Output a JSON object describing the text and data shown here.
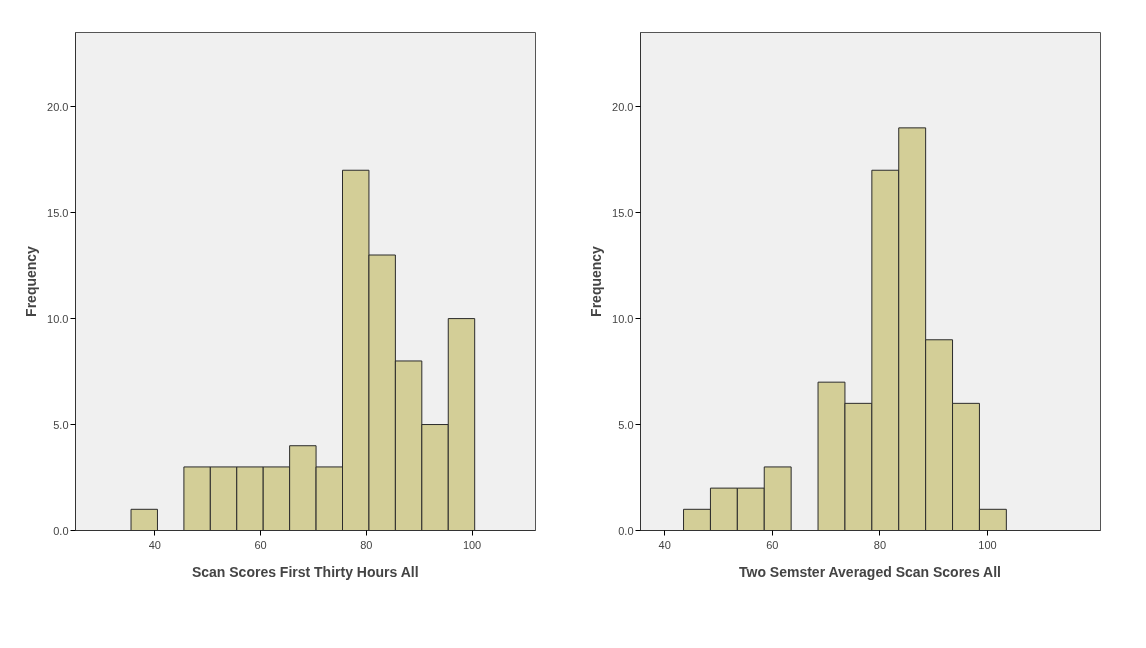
{
  "chart_data": [
    {
      "type": "histogram",
      "xlabel": "Scan Scores First Thirty Hours All",
      "ylabel": "Frequency",
      "color": "#d3ce97",
      "bins": [
        35.5,
        40.5,
        45.5,
        50.5,
        55.5,
        60.5,
        65.5,
        70.5,
        75.5,
        80.5,
        85.5,
        90.5,
        95.5,
        100.5
      ],
      "values": [
        1,
        0,
        3,
        3,
        3,
        3,
        4,
        3,
        17,
        13,
        8,
        5,
        10
      ],
      "xlim": [
        25,
        112
      ],
      "ylim": [
        0,
        23.5
      ],
      "xticks": [
        40,
        60,
        80,
        100
      ],
      "yticks": [
        {
          "value": 0,
          "label": "0.0"
        },
        {
          "value": 5,
          "label": "5.0"
        },
        {
          "value": 10,
          "label": "10.0"
        },
        {
          "value": 15,
          "label": "15.0"
        },
        {
          "value": 20,
          "label": "20.0"
        }
      ],
      "grid": false
    },
    {
      "type": "histogram",
      "xlabel": "Two Semster Averaged Scan Scores All",
      "ylabel": "Frequency",
      "color": "#d3ce97",
      "bins": [
        43.5,
        48.5,
        53.5,
        58.5,
        63.5,
        68.5,
        73.5,
        78.5,
        83.5,
        88.5,
        93.5,
        98.5,
        103.5
      ],
      "values": [
        1,
        2,
        2,
        3,
        0,
        7,
        6,
        17,
        19,
        9,
        6,
        1
      ],
      "xlim": [
        35.5,
        121
      ],
      "ylim": [
        0,
        23.5
      ],
      "xticks": [
        40,
        60,
        80,
        100
      ],
      "yticks": [
        {
          "value": 0,
          "label": "0.0"
        },
        {
          "value": 5,
          "label": "5.0"
        },
        {
          "value": 10,
          "label": "10.0"
        },
        {
          "value": 15,
          "label": "15.0"
        },
        {
          "value": 20,
          "label": "20.0"
        }
      ],
      "grid": false
    }
  ]
}
